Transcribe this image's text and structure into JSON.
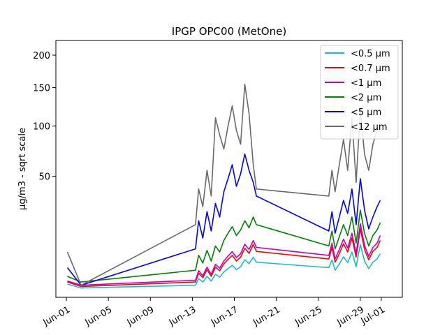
{
  "chart_data": {
    "type": "line",
    "title": "IPGP OPC00 (MetOne)",
    "xlabel": "",
    "ylabel": "µg/m3 - sqrt scale",
    "y_scale": "sqrt",
    "x_ticks": [
      "Jun-01",
      "Jun-05",
      "Jun-09",
      "Jun-13",
      "Jun-17",
      "Jun-21",
      "Jun-25",
      "Jun-29",
      "Jul-01"
    ],
    "x_tick_days": [
      1,
      5,
      9,
      13,
      17,
      21,
      25,
      29,
      31
    ],
    "y_ticks": [
      50,
      100,
      150,
      200
    ],
    "xlim": [
      "May-30",
      "Jul-02"
    ],
    "ylim": [
      0,
      225
    ],
    "grid": false,
    "legend_position": "top-right",
    "series": [
      {
        "name": "<0.5 µm",
        "color": "#17becf",
        "x": [
          1.1,
          2.4,
          13.3,
          13.6,
          14.0,
          14.4,
          14.8,
          15.2,
          15.6,
          16.0,
          16.4,
          16.8,
          17.2,
          17.6,
          18.0,
          18.4,
          18.8,
          19.1,
          26.0,
          26.3,
          26.6,
          27.0,
          27.4,
          27.8,
          28.2,
          28.6,
          29.0,
          29.4,
          29.8,
          30.2,
          30.6,
          30.9
        ],
        "y": [
          0.6,
          0.3,
          0.5,
          1.2,
          0.8,
          1.5,
          0.9,
          1.8,
          1.4,
          2.2,
          2.8,
          3.5,
          2.6,
          3.2,
          4.8,
          3.9,
          5.5,
          4.2,
          3.0,
          4.8,
          2.5,
          3.8,
          5.6,
          4.1,
          7.0,
          3.2,
          9.5,
          4.5,
          2.8,
          4.2,
          5.0,
          6.5
        ]
      },
      {
        "name": "<0.7 µm",
        "color": "#ff0000",
        "x": [
          1.1,
          2.4,
          13.3,
          13.6,
          14.0,
          14.4,
          14.8,
          15.2,
          15.6,
          16.0,
          16.4,
          16.8,
          17.2,
          17.6,
          18.0,
          18.4,
          18.8,
          19.1,
          26.0,
          26.3,
          26.6,
          27.0,
          27.4,
          27.8,
          28.2,
          28.6,
          29.0,
          29.4,
          29.8,
          30.2,
          30.6,
          30.9
        ],
        "y": [
          0.8,
          0.4,
          0.8,
          2.0,
          1.3,
          2.6,
          1.5,
          3.1,
          2.4,
          3.8,
          4.9,
          6.0,
          4.5,
          5.5,
          8.2,
          6.6,
          9.5,
          7.2,
          5.0,
          8.5,
          4.2,
          6.5,
          9.8,
          7.0,
          12.0,
          5.5,
          16.0,
          7.8,
          4.8,
          7.2,
          8.5,
          11.0
        ]
      },
      {
        "name": "<1 µm",
        "color": "#bf00bf",
        "x": [
          1.1,
          2.4,
          13.3,
          13.6,
          14.0,
          14.4,
          14.8,
          15.2,
          15.6,
          16.0,
          16.4,
          16.8,
          17.2,
          17.6,
          18.0,
          18.4,
          18.8,
          19.1,
          26.0,
          26.3,
          26.6,
          27.0,
          27.4,
          27.8,
          28.2,
          28.6,
          29.0,
          29.4,
          29.8,
          30.2,
          30.6,
          30.9
        ],
        "y": [
          0.9,
          0.5,
          1.0,
          2.4,
          1.6,
          3.1,
          1.8,
          3.7,
          2.9,
          4.5,
          5.8,
          7.1,
          5.4,
          6.5,
          9.6,
          7.8,
          11.0,
          8.5,
          6.0,
          10.0,
          5.0,
          7.8,
          11.5,
          8.3,
          14.0,
          6.5,
          18.5,
          9.2,
          5.7,
          8.5,
          10.0,
          13.0
        ]
      },
      {
        "name": "<2 µm",
        "color": "#008000",
        "x": [
          1.1,
          2.4,
          13.3,
          13.6,
          14.0,
          14.4,
          14.8,
          15.2,
          15.6,
          16.0,
          16.4,
          16.8,
          17.2,
          17.6,
          18.0,
          18.4,
          18.8,
          19.1,
          26.0,
          26.3,
          26.6,
          27.0,
          27.4,
          27.8,
          28.2,
          28.6,
          29.0,
          29.4,
          29.8,
          30.2,
          30.6,
          30.9
        ],
        "y": [
          1.5,
          0.8,
          2.5,
          6.0,
          4.0,
          7.5,
          4.5,
          9.0,
          7.0,
          11.0,
          14.0,
          17.0,
          13.0,
          15.5,
          20.0,
          16.5,
          22.0,
          18.0,
          9.0,
          15.0,
          8.0,
          12.5,
          18.0,
          13.0,
          22.0,
          10.0,
          26.0,
          14.0,
          9.0,
          13.0,
          15.5,
          19.0
        ]
      },
      {
        "name": "<5 µm",
        "color": "#0000ff",
        "x": [
          1.1,
          2.4,
          13.3,
          13.6,
          14.0,
          14.4,
          14.8,
          15.2,
          15.6,
          16.0,
          16.4,
          16.8,
          17.2,
          17.6,
          18.0,
          18.4,
          18.8,
          19.1,
          26.0,
          26.3,
          26.6,
          27.0,
          27.4,
          27.8,
          28.2,
          28.6,
          29.0,
          29.4,
          29.8,
          30.2,
          30.6,
          30.9
        ],
        "y": [
          3.0,
          0.5,
          8.0,
          20.0,
          12.0,
          25.0,
          15.0,
          30.0,
          22.0,
          38.0,
          48.0,
          60.0,
          42.0,
          52.0,
          70.0,
          55.0,
          45.0,
          35.0,
          15.0,
          25.0,
          14.0,
          22.0,
          32.0,
          24.0,
          40.0,
          18.0,
          48.0,
          26.0,
          16.0,
          22.0,
          28.0,
          32.0
        ]
      },
      {
        "name": "<12 µm",
        "color": "#696969",
        "x": [
          1.1,
          2.4,
          13.3,
          13.6,
          14.0,
          14.4,
          14.8,
          15.2,
          15.6,
          16.0,
          16.4,
          16.8,
          17.2,
          17.6,
          18.0,
          18.4,
          18.8,
          19.1,
          26.0,
          26.3,
          26.6,
          27.0,
          27.4,
          27.8,
          28.2,
          28.6,
          29.0,
          29.4,
          29.8,
          30.2,
          30.6,
          30.9
        ],
        "y": [
          7.0,
          0.5,
          18.0,
          40.0,
          28.0,
          55.0,
          35.0,
          110.0,
          90.0,
          75.0,
          100.0,
          125.0,
          95.0,
          80.0,
          155.0,
          115.0,
          60.0,
          40.0,
          35.0,
          55.0,
          38.0,
          60.0,
          85.0,
          55.0,
          110.0,
          45.0,
          120.0,
          70.0,
          55.0,
          80.0,
          95.0,
          105.0
        ]
      }
    ]
  }
}
